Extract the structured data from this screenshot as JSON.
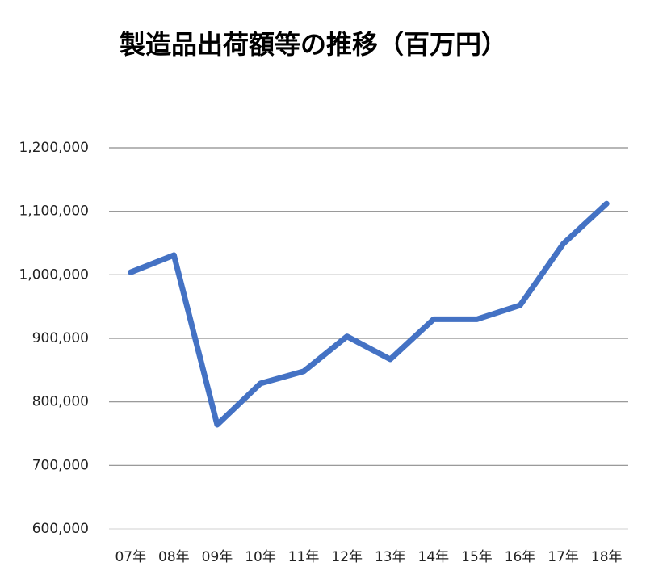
{
  "chart_data": {
    "type": "line",
    "title": "製造品出荷額等の推移（百万円）",
    "categories": [
      "07年",
      "08年",
      "09年",
      "10年",
      "11年",
      "12年",
      "13年",
      "14年",
      "15年",
      "16年",
      "17年",
      "18年"
    ],
    "series": [
      {
        "color": "#4472c4",
        "values": [
          1004000,
          1031000,
          764000,
          829000,
          848000,
          903000,
          867000,
          930000,
          930000,
          952000,
          1049000,
          1112000
        ]
      }
    ],
    "ylim": [
      600000,
      1200000
    ],
    "yticks": [
      {
        "value": 600000,
        "label": "600,000"
      },
      {
        "value": 700000,
        "label": "700,000"
      },
      {
        "value": 800000,
        "label": "800,000"
      },
      {
        "value": 900000,
        "label": "900,000"
      },
      {
        "value": 1000000,
        "label": "1,000,000"
      },
      {
        "value": 1100000,
        "label": "1,100,000"
      },
      {
        "value": 1200000,
        "label": "1,200,000"
      }
    ],
    "grid": true
  }
}
